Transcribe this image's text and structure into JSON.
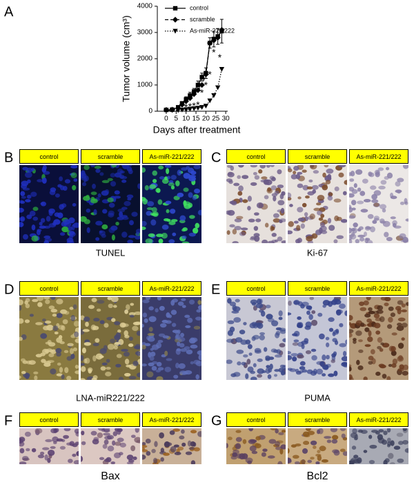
{
  "chart_data": {
    "type": "line",
    "panel_label": "A",
    "x_label": "Days after treatment",
    "y_label": "Tumor volume (cm³)",
    "x": [
      0,
      3,
      6,
      8,
      10,
      12,
      14,
      16,
      18,
      20,
      22,
      24,
      26,
      28
    ],
    "series": [
      {
        "name": "control",
        "color": "#000000",
        "dash": "solid",
        "marker": "square",
        "values": [
          50,
          60,
          150,
          300,
          450,
          600,
          750,
          1000,
          1300,
          1450,
          2600,
          2750,
          2850,
          3050
        ],
        "errors": [
          10,
          10,
          60,
          60,
          100,
          120,
          120,
          150,
          150,
          200,
          200,
          300,
          300,
          450
        ]
      },
      {
        "name": "scramble",
        "color": "#000000",
        "dash": "dashed",
        "marker": "diamond",
        "values": [
          50,
          60,
          120,
          250,
          380,
          500,
          650,
          800,
          1000,
          1400,
          2600,
          2700,
          2800,
          3100
        ]
      },
      {
        "name": "As-miR-221/222",
        "color": "#000000",
        "dash": "dotted",
        "marker": "triangle-down",
        "values": [
          30,
          30,
          30,
          50,
          60,
          80,
          100,
          120,
          150,
          200,
          400,
          600,
          900,
          1600
        ]
      }
    ],
    "annotations": [
      {
        "text": "*",
        "x": 10,
        "y": 200
      },
      {
        "text": "*",
        "x": 12,
        "y": 230
      },
      {
        "text": "*",
        "x": 14,
        "y": 260
      },
      {
        "text": "*",
        "x": 16,
        "y": 300
      },
      {
        "text": "*",
        "x": 18,
        "y": 750
      },
      {
        "text": "*",
        "x": 20,
        "y": 1050
      },
      {
        "text": "*",
        "x": 22,
        "y": 1450
      },
      {
        "text": "*",
        "x": 24,
        "y": 2300
      },
      {
        "text": "*",
        "x": 27,
        "y": 2100
      }
    ],
    "xlim": [
      -4.5,
      31
    ],
    "ylim": [
      0,
      4000
    ],
    "xticks": [
      0,
      5,
      10,
      15,
      20,
      25,
      30
    ],
    "yticks": [
      0,
      1000,
      2000,
      3000,
      4000
    ],
    "legend": "upper-left"
  },
  "panels": [
    {
      "label": "B",
      "headers": [
        "control",
        "scramble",
        "As-miR-221/222"
      ],
      "caption": "TUNEL"
    },
    {
      "label": "C",
      "headers": [
        "control",
        "scramble",
        "As-miR-221/222"
      ],
      "caption": "Ki-67"
    },
    {
      "label": "D",
      "headers": [
        "control",
        "scramble",
        "As-miR-221/222"
      ],
      "caption": "LNA-miR221/222"
    },
    {
      "label": "E",
      "headers": [
        "control",
        "scramble",
        "As-miR-221/222"
      ],
      "caption": "PUMA"
    },
    {
      "label": "F",
      "headers": [
        "control",
        "scramble",
        "As-miR-221/222"
      ],
      "caption": "Bax"
    },
    {
      "label": "G",
      "headers": [
        "control",
        "scramble",
        "As-miR-221/222"
      ],
      "caption": "Bcl2"
    }
  ]
}
